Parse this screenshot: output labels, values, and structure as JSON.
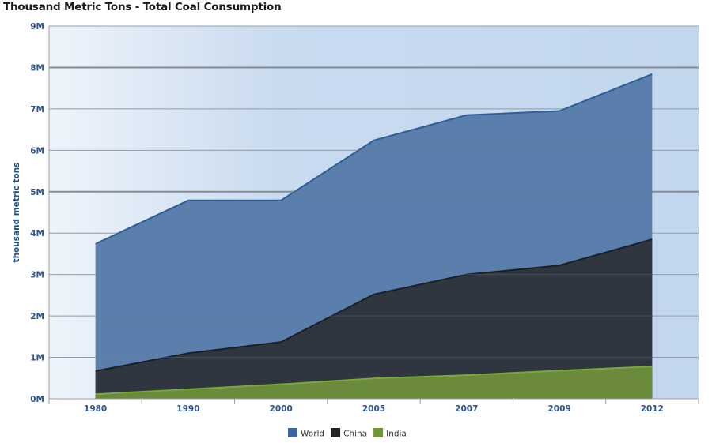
{
  "chart_data": {
    "type": "area",
    "stacked": false,
    "title": "Thousand Metric Tons - Total Coal Consumption",
    "xlabel": "",
    "ylabel": "thousand metric tons",
    "categories": [
      "1980",
      "1990",
      "2000",
      "2005",
      "2007",
      "2009",
      "2012"
    ],
    "ylim": [
      0,
      9000000
    ],
    "yticks": [
      0,
      1000000,
      2000000,
      3000000,
      4000000,
      5000000,
      6000000,
      7000000,
      8000000,
      9000000
    ],
    "ytick_labels": [
      "0M",
      "1M",
      "2M",
      "3M",
      "4M",
      "5M",
      "6M",
      "7M",
      "8M",
      "9M"
    ],
    "grid": true,
    "legend_position": "bottom",
    "series": [
      {
        "name": "World",
        "color": "#5a7fad",
        "legend_color": "#3a66a0",
        "line_color": "#2f5d96",
        "values": [
          3740000,
          4790000,
          4790000,
          6240000,
          6850000,
          6950000,
          7840000
        ]
      },
      {
        "name": "China",
        "color": "#30363f",
        "legend_color": "#222222",
        "line_color": "#1c1f24",
        "values": [
          670000,
          1100000,
          1370000,
          2520000,
          3000000,
          3220000,
          3850000
        ]
      },
      {
        "name": "India",
        "color": "#6b8a3c",
        "legend_color": "#6c9a30",
        "line_color": "#7aa83a",
        "values": [
          110000,
          230000,
          350000,
          490000,
          570000,
          680000,
          780000
        ]
      }
    ]
  }
}
